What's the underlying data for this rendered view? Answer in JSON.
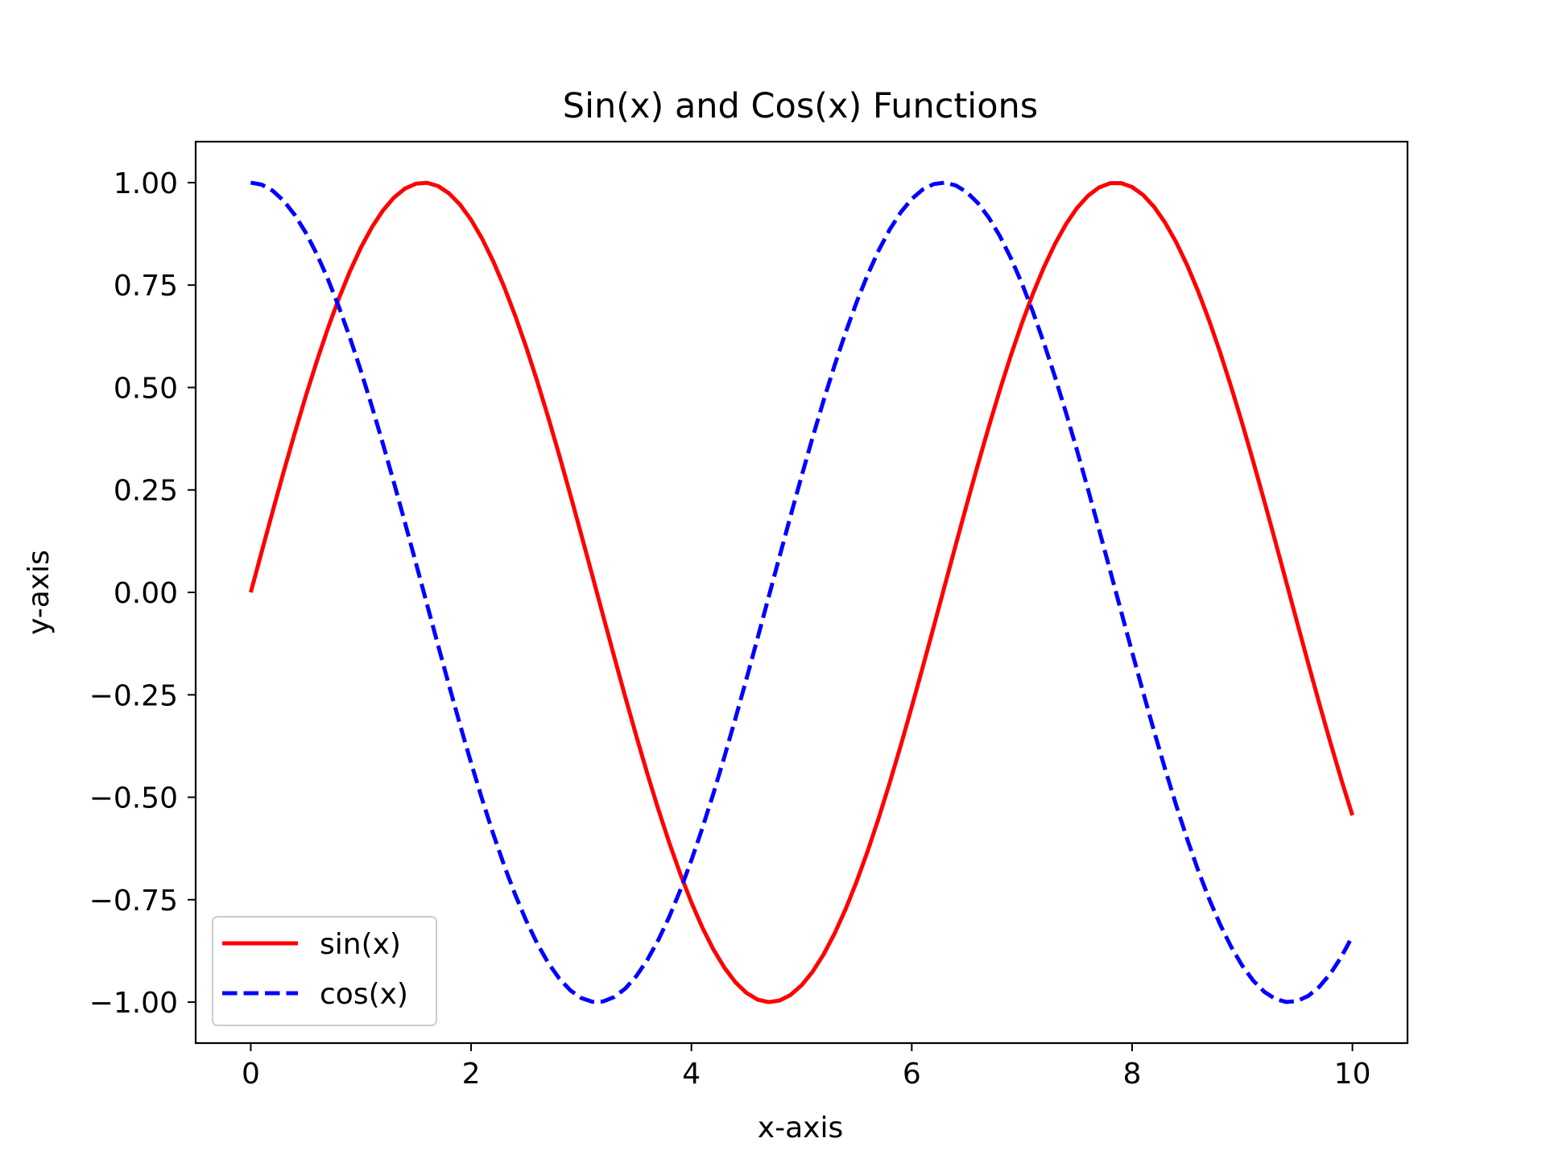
{
  "chart_data": {
    "type": "line",
    "title": "Sin(x) and Cos(x) Functions",
    "xlabel": "x-axis",
    "ylabel": "y-axis",
    "xlim": [
      -0.5,
      10.5
    ],
    "ylim": [
      -1.1,
      1.1
    ],
    "x_ticks": [
      0,
      2,
      4,
      6,
      8,
      10
    ],
    "x_tick_labels": [
      "0",
      "2",
      "4",
      "6",
      "8",
      "10"
    ],
    "y_ticks": [
      1.0,
      0.75,
      0.5,
      0.25,
      0.0,
      -0.25,
      -0.5,
      -0.75,
      -1.0
    ],
    "y_tick_labels": [
      "1.00",
      "0.75",
      "0.50",
      "0.25",
      "0.00",
      "−0.25",
      "−0.50",
      "−0.75",
      "−1.00"
    ],
    "grid": false,
    "legend_position": "lower-left",
    "x": [
      0,
      0.1,
      0.2,
      0.3,
      0.4,
      0.5,
      0.6,
      0.7,
      0.8,
      0.9,
      1.0,
      1.1,
      1.2,
      1.3,
      1.4,
      1.5,
      1.6,
      1.7,
      1.8,
      1.9,
      2.0,
      2.1,
      2.2,
      2.3,
      2.4,
      2.5,
      2.6,
      2.7,
      2.8,
      2.9,
      3.0,
      3.1,
      3.2,
      3.3,
      3.4,
      3.5,
      3.6,
      3.7,
      3.8,
      3.9,
      4.0,
      4.1,
      4.2,
      4.3,
      4.4,
      4.5,
      4.6,
      4.7,
      4.8,
      4.9,
      5.0,
      5.1,
      5.2,
      5.3,
      5.4,
      5.5,
      5.6,
      5.7,
      5.8,
      5.9,
      6.0,
      6.1,
      6.2,
      6.3,
      6.4,
      6.5,
      6.6,
      6.7,
      6.8,
      6.9,
      7.0,
      7.1,
      7.2,
      7.3,
      7.4,
      7.5,
      7.6,
      7.7,
      7.8,
      7.9,
      8.0,
      8.1,
      8.2,
      8.3,
      8.4,
      8.5,
      8.6,
      8.7,
      8.8,
      8.9,
      9.0,
      9.1,
      9.2,
      9.3,
      9.4,
      9.5,
      9.6,
      9.7,
      9.8,
      9.9,
      10.0
    ],
    "series": [
      {
        "name": "sin(x)",
        "color": "#ff0000",
        "style": "solid",
        "values": [
          0.0,
          0.0998,
          0.1987,
          0.2955,
          0.3894,
          0.4794,
          0.5646,
          0.6442,
          0.7174,
          0.7833,
          0.8415,
          0.8912,
          0.932,
          0.9636,
          0.9854,
          0.9975,
          0.9996,
          0.9917,
          0.9738,
          0.9463,
          0.9093,
          0.8632,
          0.8085,
          0.7457,
          0.6755,
          0.5985,
          0.5155,
          0.4274,
          0.335,
          0.2392,
          0.1411,
          0.0416,
          -0.0584,
          -0.1577,
          -0.2555,
          -0.3508,
          -0.4425,
          -0.5298,
          -0.6119,
          -0.6878,
          -0.7568,
          -0.8183,
          -0.8716,
          -0.9162,
          -0.9516,
          -0.9775,
          -0.9937,
          -0.9999,
          -0.9962,
          -0.9825,
          -0.9589,
          -0.9258,
          -0.8835,
          -0.8323,
          -0.7728,
          -0.7055,
          -0.6313,
          -0.5507,
          -0.4646,
          -0.3739,
          -0.2794,
          -0.1822,
          -0.0831,
          0.0168,
          0.1165,
          0.2151,
          0.3115,
          0.4048,
          0.4941,
          0.5784,
          0.657,
          0.729,
          0.7937,
          0.8504,
          0.8987,
          0.938,
          0.9679,
          0.9882,
          0.9985,
          0.9989,
          0.9894,
          0.9699,
          0.9407,
          0.9022,
          0.8546,
          0.7985,
          0.7344,
          0.663,
          0.585,
          0.501,
          0.4121,
          0.319,
          0.2229,
          0.1245,
          0.0248,
          -0.0752,
          -0.1743,
          -0.2718,
          -0.3665,
          -0.4575,
          -0.544
        ]
      },
      {
        "name": "cos(x)",
        "color": "#0000ff",
        "style": "dashed",
        "values": [
          1.0,
          0.995,
          0.9801,
          0.9553,
          0.9211,
          0.8776,
          0.8253,
          0.7648,
          0.6967,
          0.6216,
          0.5403,
          0.4536,
          0.3624,
          0.2675,
          0.17,
          0.0707,
          -0.0292,
          -0.1288,
          -0.2272,
          -0.3233,
          -0.4161,
          -0.5048,
          -0.5885,
          -0.6663,
          -0.7374,
          -0.8011,
          -0.8569,
          -0.9041,
          -0.9422,
          -0.971,
          -0.99,
          -0.9991,
          -0.9983,
          -0.9875,
          -0.9668,
          -0.9365,
          -0.8968,
          -0.8481,
          -0.791,
          -0.7259,
          -0.6536,
          -0.5748,
          -0.4903,
          -0.4008,
          -0.3073,
          -0.2108,
          -0.1122,
          -0.0124,
          0.0875,
          0.1865,
          0.2837,
          0.378,
          0.4685,
          0.5544,
          0.6347,
          0.7087,
          0.7756,
          0.8347,
          0.8855,
          0.9275,
          0.9602,
          0.9833,
          0.9965,
          0.9999,
          0.9932,
          0.9766,
          0.9502,
          0.9144,
          0.8694,
          0.8157,
          0.7539,
          0.6845,
          0.6084,
          0.5261,
          0.4385,
          0.3466,
          0.2513,
          0.1534,
          0.054,
          -0.046,
          -0.1455,
          -0.2435,
          -0.3392,
          -0.4314,
          -0.5193,
          -0.602,
          -0.6787,
          -0.7486,
          -0.8111,
          -0.8654,
          -0.9111,
          -0.9477,
          -0.9748,
          -0.9922,
          -0.9997,
          -0.9972,
          -0.9847,
          -0.9624,
          -0.9304,
          -0.8892,
          -0.8391
        ]
      }
    ]
  }
}
